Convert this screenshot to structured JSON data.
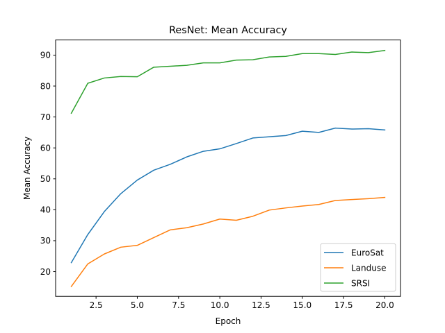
{
  "chart_data": {
    "type": "line",
    "title": "ResNet: Mean Accuracy",
    "xlabel": "Epoch",
    "ylabel": "Mean Accuracy",
    "xlim": [
      0.05,
      20.95
    ],
    "ylim": [
      12.0,
      94.9
    ],
    "x_ticks": [
      2.5,
      5.0,
      7.5,
      10.0,
      12.5,
      15.0,
      17.5,
      20.0
    ],
    "x_tick_labels": [
      "2.5",
      "5.0",
      "7.5",
      "10.0",
      "12.5",
      "15.0",
      "17.5",
      "20.0"
    ],
    "y_ticks": [
      20,
      30,
      40,
      50,
      60,
      70,
      80,
      90
    ],
    "y_tick_labels": [
      "20",
      "30",
      "40",
      "50",
      "60",
      "70",
      "80",
      "90"
    ],
    "grid": false,
    "legend_position": "lower-right",
    "x": [
      1,
      2,
      3,
      4,
      5,
      6,
      7,
      8,
      9,
      10,
      11,
      12,
      13,
      14,
      15,
      16,
      17,
      18,
      19,
      20
    ],
    "series": [
      {
        "name": "EuroSat",
        "color": "#1f77b4",
        "values": [
          22.9,
          32.0,
          39.4,
          45.2,
          49.6,
          52.8,
          54.7,
          57.1,
          58.9,
          59.7,
          61.4,
          63.2,
          63.6,
          64.0,
          65.4,
          65.0,
          66.4,
          66.1,
          66.2,
          65.8
        ]
      },
      {
        "name": "Landuse",
        "color": "#ff7f0e",
        "values": [
          15.2,
          22.5,
          25.7,
          27.9,
          28.5,
          31.0,
          33.5,
          34.2,
          35.4,
          37.0,
          36.6,
          37.9,
          39.9,
          40.6,
          41.2,
          41.7,
          43.0,
          43.3,
          43.6,
          44.0
        ]
      },
      {
        "name": "SRSI",
        "color": "#2ca02c",
        "values": [
          71.2,
          80.9,
          82.6,
          83.1,
          83.0,
          86.1,
          86.4,
          86.7,
          87.5,
          87.5,
          88.4,
          88.5,
          89.4,
          89.6,
          90.5,
          90.5,
          90.2,
          91.0,
          90.8,
          91.5
        ]
      }
    ]
  }
}
